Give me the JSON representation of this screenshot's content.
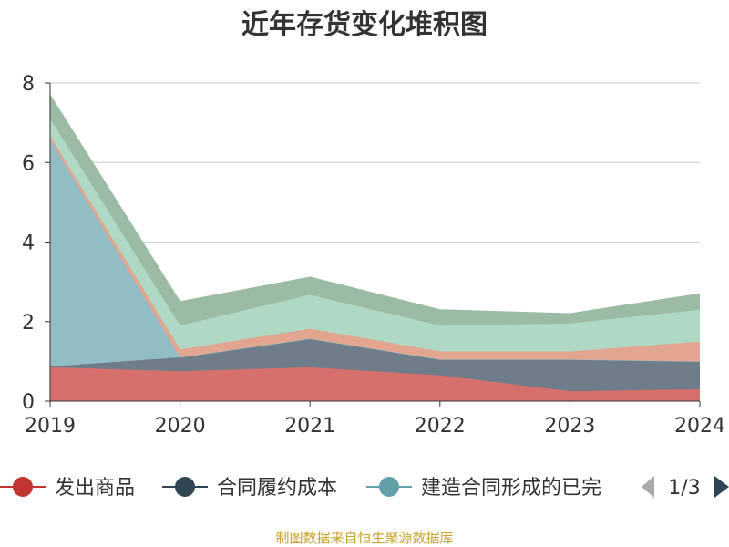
{
  "chart_data": {
    "type": "area",
    "stacked": true,
    "title": "近年存货变化堆积图",
    "x": [
      "2019",
      "2020",
      "2021",
      "2022",
      "2023",
      "2024"
    ],
    "ylim": [
      0,
      8
    ],
    "yticks": [
      "0",
      "2",
      "4",
      "6",
      "8"
    ],
    "grid": true,
    "series": [
      {
        "name": "发出商品",
        "color": "#d6706d",
        "values": [
          0.85,
          0.75,
          0.85,
          0.65,
          0.25,
          0.3
        ]
      },
      {
        "name": "合同履约成本",
        "color": "#6e7d89",
        "values": [
          0.02,
          0.35,
          0.72,
          0.4,
          0.8,
          0.7
        ]
      },
      {
        "name": "建造合同形成的已完工未结算资产",
        "color": "#93bdc4",
        "values": [
          5.7,
          0.0,
          0.0,
          0.0,
          0.0,
          0.0
        ]
      },
      {
        "color": "#e2a590",
        "values": [
          0.1,
          0.2,
          0.25,
          0.2,
          0.2,
          0.5
        ]
      },
      {
        "color": "#b0d9c5",
        "values": [
          0.43,
          0.6,
          0.85,
          0.65,
          0.7,
          0.8
        ]
      },
      {
        "color": "#9bbba5",
        "values": [
          0.6,
          0.6,
          0.45,
          0.4,
          0.25,
          0.4
        ]
      }
    ],
    "legend": {
      "position": "bottom",
      "items": [
        "发出商品",
        "合同履约成本",
        "建造合同形成的已完"
      ],
      "page": "1/3"
    },
    "legend_colors": [
      "#c23531",
      "#2f4554",
      "#61a0a8"
    ],
    "axis_color": "#333333",
    "grid_color": "#cccccc",
    "source_color": "#c9a227"
  },
  "footer": {
    "source": "制图数据来自恒生聚源数据库"
  }
}
